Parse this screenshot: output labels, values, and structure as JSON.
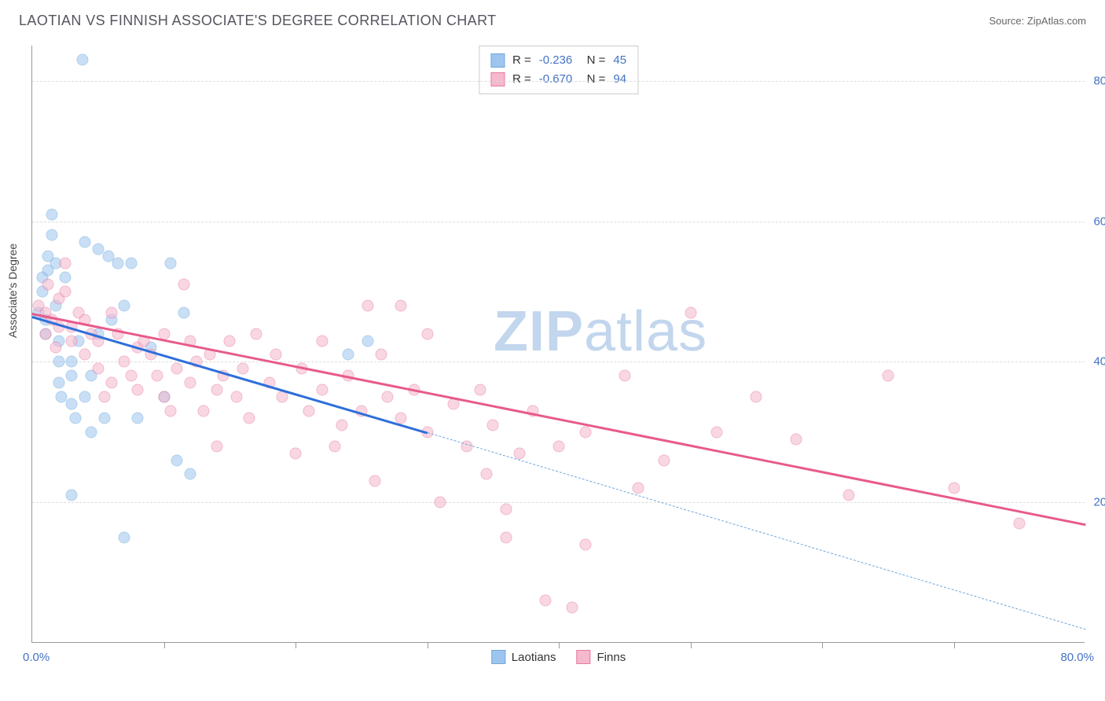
{
  "header": {
    "title": "LAOTIAN VS FINNISH ASSOCIATE'S DEGREE CORRELATION CHART",
    "source": "Source: ZipAtlas.com"
  },
  "chart": {
    "type": "scatter",
    "ylabel": "Associate's Degree",
    "xlim": [
      0,
      80
    ],
    "ylim": [
      0,
      85
    ],
    "x_axis_min_label": "0.0%",
    "x_axis_max_label": "80.0%",
    "y_ticks": [
      20,
      40,
      60,
      80
    ],
    "y_tick_labels": [
      "20.0%",
      "40.0%",
      "60.0%",
      "80.0%"
    ],
    "x_ticks": [
      10,
      20,
      30,
      40,
      50,
      60,
      70
    ],
    "background_color": "#ffffff",
    "grid_color": "#dddddd",
    "marker_size": 15,
    "marker_opacity": 0.55,
    "watermark": "ZIPatlas",
    "series": [
      {
        "name": "Laotians",
        "color": "#9ec5f0",
        "border": "#6fa8dc",
        "r_value": "-0.236",
        "n_value": "45",
        "trend": {
          "x1": 0,
          "y1": 46.5,
          "x2": 30,
          "y2": 30,
          "color": "#2e6fd9",
          "width": 2.5
        },
        "trend_extend": {
          "x1": 30,
          "y1": 30,
          "x2": 80,
          "y2": 2,
          "color": "#6fa8dc"
        },
        "points": [
          [
            0.5,
            47
          ],
          [
            0.8,
            50
          ],
          [
            0.8,
            52
          ],
          [
            1,
            44
          ],
          [
            1,
            46
          ],
          [
            1.2,
            53
          ],
          [
            1.2,
            55
          ],
          [
            1.5,
            58
          ],
          [
            1.8,
            54
          ],
          [
            1.8,
            48
          ],
          [
            1.5,
            61
          ],
          [
            2,
            43
          ],
          [
            2,
            40
          ],
          [
            2,
            37
          ],
          [
            2.2,
            35
          ],
          [
            2.5,
            52
          ],
          [
            3,
            21
          ],
          [
            3,
            34
          ],
          [
            3,
            38
          ],
          [
            3,
            40
          ],
          [
            3.3,
            32
          ],
          [
            3.5,
            43
          ],
          [
            3.8,
            83
          ],
          [
            4,
            35
          ],
          [
            4,
            57
          ],
          [
            4.5,
            38
          ],
          [
            4.5,
            30
          ],
          [
            5,
            44
          ],
          [
            5,
            56
          ],
          [
            5.5,
            32
          ],
          [
            5.8,
            55
          ],
          [
            6,
            46
          ],
          [
            6.5,
            54
          ],
          [
            7,
            48
          ],
          [
            7,
            15
          ],
          [
            7.5,
            54
          ],
          [
            8,
            32
          ],
          [
            9,
            42
          ],
          [
            10,
            35
          ],
          [
            10.5,
            54
          ],
          [
            11,
            26
          ],
          [
            11.5,
            47
          ],
          [
            12,
            24
          ],
          [
            24,
            41
          ],
          [
            25.5,
            43
          ]
        ]
      },
      {
        "name": "Finns",
        "color": "#f5b8cc",
        "border": "#e87ba3",
        "r_value": "-0.670",
        "n_value": "94",
        "trend": {
          "x1": 0,
          "y1": 47,
          "x2": 80,
          "y2": 17,
          "color": "#e85a8c",
          "width": 2.5
        },
        "points": [
          [
            0.5,
            48
          ],
          [
            1,
            44
          ],
          [
            1,
            47
          ],
          [
            1.2,
            51
          ],
          [
            1.5,
            46
          ],
          [
            1.8,
            42
          ],
          [
            2,
            45
          ],
          [
            2,
            49
          ],
          [
            2.5,
            54
          ],
          [
            2.5,
            50
          ],
          [
            3,
            43
          ],
          [
            3,
            45
          ],
          [
            3.5,
            47
          ],
          [
            4,
            46
          ],
          [
            4,
            41
          ],
          [
            4.5,
            44
          ],
          [
            5,
            43
          ],
          [
            5,
            39
          ],
          [
            5.5,
            35
          ],
          [
            6,
            47
          ],
          [
            6,
            37
          ],
          [
            6.5,
            44
          ],
          [
            7,
            40
          ],
          [
            7.5,
            38
          ],
          [
            8,
            42
          ],
          [
            8,
            36
          ],
          [
            8.5,
            43
          ],
          [
            9,
            41
          ],
          [
            9.5,
            38
          ],
          [
            10,
            44
          ],
          [
            10,
            35
          ],
          [
            10.5,
            33
          ],
          [
            11,
            39
          ],
          [
            11.5,
            51
          ],
          [
            12,
            37
          ],
          [
            12,
            43
          ],
          [
            12.5,
            40
          ],
          [
            13,
            33
          ],
          [
            13.5,
            41
          ],
          [
            14,
            36
          ],
          [
            14,
            28
          ],
          [
            14.5,
            38
          ],
          [
            15,
            43
          ],
          [
            15.5,
            35
          ],
          [
            16,
            39
          ],
          [
            16.5,
            32
          ],
          [
            17,
            44
          ],
          [
            18,
            37
          ],
          [
            18.5,
            41
          ],
          [
            19,
            35
          ],
          [
            20,
            27
          ],
          [
            20.5,
            39
          ],
          [
            21,
            33
          ],
          [
            22,
            43
          ],
          [
            22,
            36
          ],
          [
            23,
            28
          ],
          [
            23.5,
            31
          ],
          [
            24,
            38
          ],
          [
            25,
            33
          ],
          [
            25.5,
            48
          ],
          [
            26,
            23
          ],
          [
            26.5,
            41
          ],
          [
            27,
            35
          ],
          [
            28,
            48
          ],
          [
            28,
            32
          ],
          [
            29,
            36
          ],
          [
            30,
            44
          ],
          [
            30,
            30
          ],
          [
            31,
            20
          ],
          [
            32,
            34
          ],
          [
            33,
            28
          ],
          [
            34,
            36
          ],
          [
            34.5,
            24
          ],
          [
            35,
            31
          ],
          [
            36,
            15
          ],
          [
            36,
            19
          ],
          [
            37,
            27
          ],
          [
            38,
            33
          ],
          [
            39,
            6
          ],
          [
            40,
            28
          ],
          [
            41,
            5
          ],
          [
            42,
            30
          ],
          [
            42,
            14
          ],
          [
            45,
            38
          ],
          [
            46,
            22
          ],
          [
            48,
            26
          ],
          [
            50,
            47
          ],
          [
            52,
            30
          ],
          [
            55,
            35
          ],
          [
            58,
            29
          ],
          [
            62,
            21
          ],
          [
            65,
            38
          ],
          [
            70,
            22
          ],
          [
            75,
            17
          ]
        ]
      }
    ],
    "legend_bottom": [
      {
        "label": "Laotians",
        "fill": "#9ec5f0",
        "border": "#6fa8dc"
      },
      {
        "label": "Finns",
        "fill": "#f5b8cc",
        "border": "#e87ba3"
      }
    ]
  }
}
